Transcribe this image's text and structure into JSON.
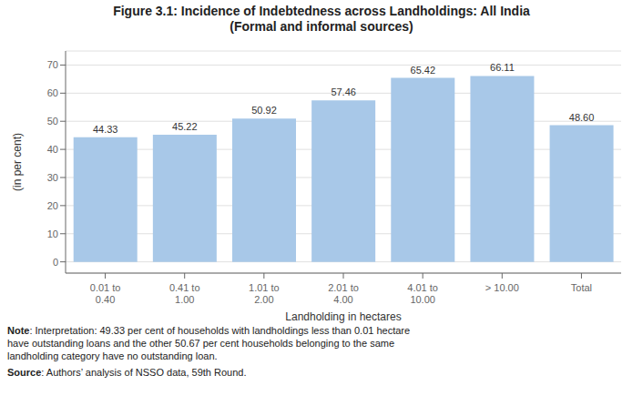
{
  "chart_data": {
    "type": "bar",
    "title": "Figure 3.1: Incidence of Indebtedness across Landholdings: All India",
    "subtitle": "(Formal and informal sources)",
    "categories": [
      "0.01 to\n0.40",
      "0.41 to\n1.00",
      "1.01 to\n2.00",
      "2.01 to\n4.00",
      "4.01 to\n10.00",
      "> 10.00",
      "Total"
    ],
    "values": [
      44.33,
      45.22,
      50.92,
      57.46,
      65.42,
      66.11,
      48.6
    ],
    "value_labels": [
      "44.33",
      "45.22",
      "50.92",
      "57.46",
      "65.42",
      "66.11",
      "48.60"
    ],
    "data_labels": true,
    "color": "#a8c8e8",
    "x_label": "Landholding in hectares",
    "y_label": "(in per cent)",
    "ylim": [
      -4,
      75
    ],
    "yticks": [
      0,
      10,
      20,
      30,
      40,
      50,
      60,
      70
    ],
    "grid": true,
    "annotations": [
      "Note: Interpretation: 49.33 per cent of households with landholdings less than 0.01 hectare\nhave outstanding loans and the other 50.67 per cent households belonging to the same\nlandholding category have no outstanding loan.",
      "Source: Authors’ analysis of NSSO data, 59th Round."
    ]
  }
}
